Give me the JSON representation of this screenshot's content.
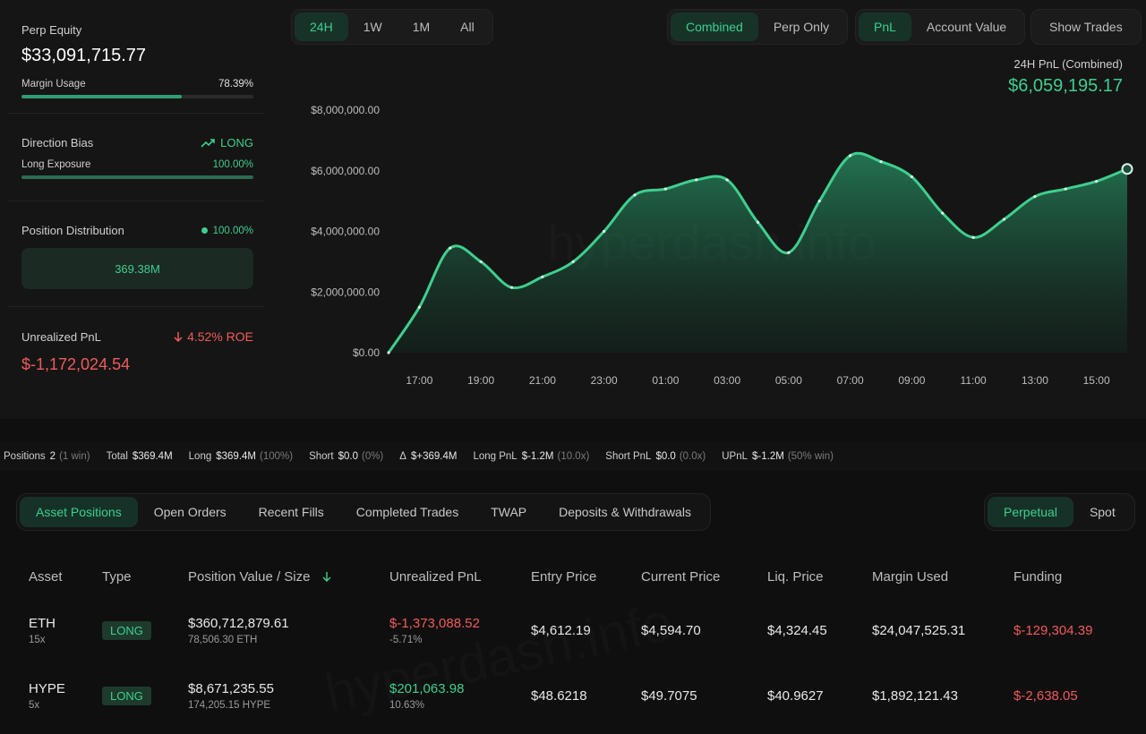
{
  "left_panel": {
    "perp_equity": {
      "label": "Perp Equity",
      "value": "$33,091,715.77"
    },
    "margin_usage": {
      "label": "Margin Usage",
      "value": "78.39%",
      "fraction": 0.7839
    },
    "direction_bias": {
      "label": "Direction Bias",
      "value": "LONG"
    },
    "long_exposure": {
      "label": "Long Exposure",
      "value": "100.00%",
      "fraction": 1.0
    },
    "position_distribution": {
      "label": "Position Distribution",
      "value": "100.00%",
      "bar_value": "369.38M"
    },
    "unrealized_pnl": {
      "label": "Unrealized PnL",
      "roe": "4.52% ROE",
      "value": "$-1,172,024.54"
    }
  },
  "timeframes": [
    "24H",
    "1W",
    "1M",
    "All"
  ],
  "mode_toggle": [
    "Combined",
    "Perp Only"
  ],
  "metric_toggle": [
    "PnL",
    "Account Value"
  ],
  "show_trades_label": "Show Trades",
  "chart_header": {
    "label": "24H PnL (Combined)",
    "value": "$6,059,195.17"
  },
  "watermark": "hyperdash.info",
  "colors": {
    "accent": "#3ecf8e",
    "negative": "#ef5b5b"
  },
  "chart_data": {
    "type": "area",
    "x": [
      "16:00",
      "17:00",
      "18:00",
      "19:00",
      "20:00",
      "21:00",
      "22:00",
      "23:00",
      "00:00",
      "01:00",
      "02:00",
      "03:00",
      "04:00",
      "05:00",
      "06:00",
      "07:00",
      "08:00",
      "09:00",
      "10:00",
      "11:00",
      "12:00",
      "13:00",
      "14:00",
      "15:00",
      "16:00"
    ],
    "x_ticks": [
      "17:00",
      "19:00",
      "21:00",
      "23:00",
      "01:00",
      "03:00",
      "05:00",
      "07:00",
      "09:00",
      "11:00",
      "13:00",
      "15:00"
    ],
    "values": [
      0,
      1500000,
      3450000,
      3000000,
      2150000,
      2500000,
      3000000,
      4000000,
      5200000,
      5400000,
      5700000,
      5700000,
      4300000,
      3300000,
      5000000,
      6500000,
      6300000,
      5800000,
      4600000,
      3800000,
      4400000,
      5150000,
      5400000,
      5650000,
      6059195
    ],
    "y_ticks": [
      "$8,000,000.00",
      "$6,000,000.00",
      "$4,000,000.00",
      "$2,000,000.00",
      "$0.00"
    ],
    "ylim": [
      0,
      8000000
    ],
    "grid": false
  },
  "stats": [
    {
      "label": "Positions",
      "value": "2",
      "meta": "(1 win)"
    },
    {
      "label": "Total",
      "value": "$369.4M",
      "meta": ""
    },
    {
      "label": "Long",
      "value": "$369.4M",
      "meta": "(100%)"
    },
    {
      "label": "Short",
      "value": "$0.0",
      "meta": "(0%)"
    },
    {
      "label": "Δ",
      "value": "$+369.4M",
      "meta": ""
    },
    {
      "label": "Long PnL",
      "value": "$-1.2M",
      "meta": "(10.0x)"
    },
    {
      "label": "Short PnL",
      "value": "$0.0",
      "meta": "(0.0x)"
    },
    {
      "label": "UPnL",
      "value": "$-1.2M",
      "meta": "(50% win)"
    }
  ],
  "tabs": [
    "Asset Positions",
    "Open Orders",
    "Recent Fills",
    "Completed Trades",
    "TWAP",
    "Deposits & Withdrawals"
  ],
  "market_tabs": [
    "Perpetual",
    "Spot"
  ],
  "table": {
    "headers": [
      "Asset",
      "Type",
      "Position Value / Size",
      "Unrealized PnL",
      "Entry Price",
      "Current Price",
      "Liq. Price",
      "Margin Used",
      "Funding"
    ],
    "rows": [
      {
        "asset": "ETH",
        "leverage": "15x",
        "type": "LONG",
        "value": "$360,712,879.61",
        "size": "78,506.30 ETH",
        "upnl": "$-1,373,088.52",
        "upnl_pct": "-5.71%",
        "entry": "$4,612.19",
        "current": "$4,594.70",
        "liq": "$4,324.45",
        "margin": "$24,047,525.31",
        "funding": "$-129,304.39"
      },
      {
        "asset": "HYPE",
        "leverage": "5x",
        "type": "LONG",
        "value": "$8,671,235.55",
        "size": "174,205.15 HYPE",
        "upnl": "$201,063.98",
        "upnl_pct": "10.63%",
        "entry": "$48.6218",
        "current": "$49.7075",
        "liq": "$40.9627",
        "margin": "$1,892,121.43",
        "funding": "$-2,638.05"
      }
    ]
  }
}
